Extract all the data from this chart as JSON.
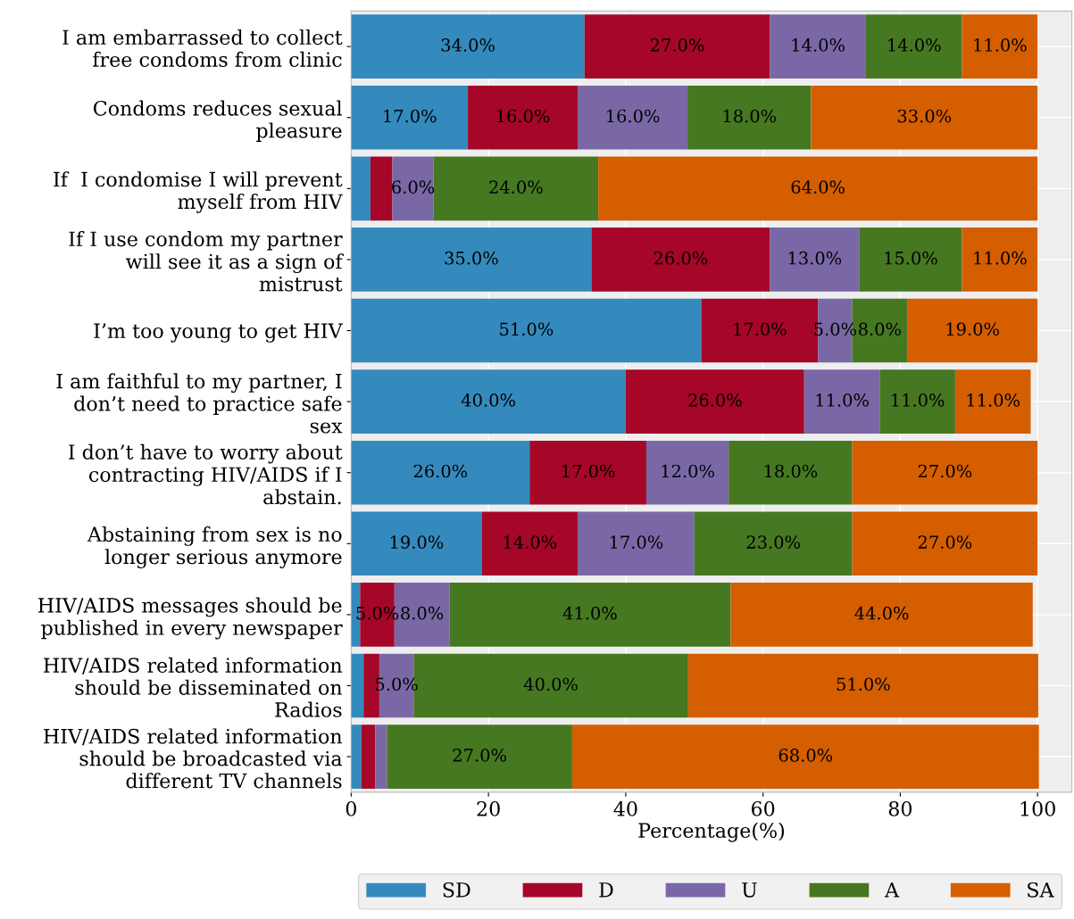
{
  "chart_data": {
    "type": "bar",
    "orientation": "horizontal",
    "stacked": true,
    "xlabel": "Percentage(%)",
    "categories": [
      "I am embarrassed to collect\nfree condoms from clinic",
      "Condoms reduces sexual\npleasure",
      "If  I condomise I will prevent\nmyself from HIV",
      "If I use condom my partner\nwill see it as a sign of\nmistrust",
      "I’m too young to get HIV",
      "I am faithful to my partner, I\ndon’t need to practice safe\nsex",
      "I don’t have to worry about\ncontracting HIV/AIDS if I\nabstain.",
      "Abstaining from sex is no\nlonger serious anymore",
      "HIV/AIDS messages should be\npublished in every newspaper",
      "HIV/AIDS related information\nshould be disseminated on\nRadios",
      "HIV/AIDS related information\nshould be broadcasted via\ndifferent TV channels"
    ],
    "series": [
      {
        "name": "SD",
        "color": "#348abd",
        "values": [
          34,
          17,
          2.8,
          35,
          51,
          40,
          26,
          19,
          1.3,
          1.8,
          1.5
        ],
        "value_labels": [
          "34.0%",
          "17.0%",
          null,
          "35.0%",
          "51.0%",
          "40.0%",
          "26.0%",
          "19.0%",
          null,
          null,
          null
        ]
      },
      {
        "name": "D",
        "color": "#a60628",
        "values": [
          27,
          16,
          3.2,
          26,
          17,
          26,
          17,
          14,
          5,
          2.3,
          2
        ],
        "value_labels": [
          "27.0%",
          "16.0%",
          null,
          "26.0%",
          "17.0%",
          "26.0%",
          "17.0%",
          "14.0%",
          "5.0%",
          null,
          null
        ]
      },
      {
        "name": "U",
        "color": "#7a68a6",
        "values": [
          14,
          16,
          6,
          13,
          5,
          11,
          12,
          17,
          8,
          5,
          1.7
        ],
        "value_labels": [
          "14.0%",
          "16.0%",
          "6.0%",
          "13.0%",
          "5.0%",
          "11.0%",
          "12.0%",
          "17.0%",
          "8.0%",
          "5.0%",
          null
        ]
      },
      {
        "name": "A",
        "color": "#467821",
        "values": [
          14,
          18,
          24,
          15,
          8,
          11,
          18,
          23,
          41,
          40,
          27
        ],
        "value_labels": [
          "14.0%",
          "18.0%",
          "24.0%",
          "15.0%",
          "8.0%",
          "11.0%",
          "18.0%",
          "23.0%",
          "41.0%",
          "40.0%",
          "27.0%"
        ]
      },
      {
        "name": "SA",
        "color": "#d55e00",
        "values": [
          11,
          33,
          64,
          11,
          19,
          11,
          27,
          27,
          44,
          51,
          68
        ],
        "value_labels": [
          "11.0%",
          "33.0%",
          "64.0%",
          "11.0%",
          "19.0%",
          "11.0%",
          "27.0%",
          "27.0%",
          "44.0%",
          "51.0%",
          "68.0%"
        ]
      }
    ],
    "xlim": [
      0,
      105
    ],
    "xticks": [
      0,
      20,
      40,
      60,
      80,
      100
    ],
    "grid": true,
    "legend": "bottom"
  }
}
